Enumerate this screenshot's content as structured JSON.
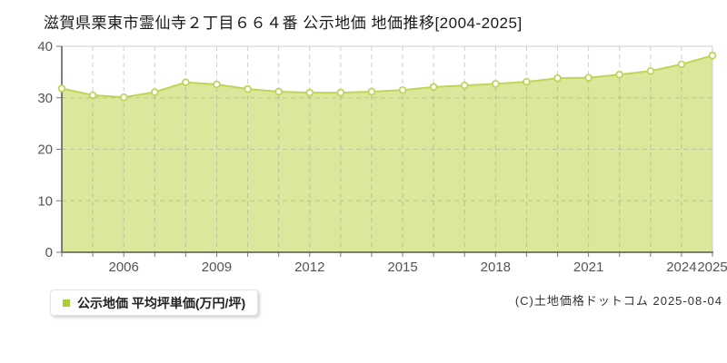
{
  "page": {
    "title": "滋賀県栗東市霊仙寺２丁目６６４番 公示地価 地価推移[2004-2025]",
    "copyright": "(C)土地価格ドットコム 2025-08-04"
  },
  "legend": {
    "label": "公示地価 平均坪単価(万円/坪)",
    "swatch_color": "#a9cf35"
  },
  "chart_data": {
    "type": "area",
    "title": "滋賀県栗東市霊仙寺２丁目６６４番 公示地価 地価推移[2004-2025]",
    "series_name": "公示地価 平均坪単価(万円/坪)",
    "x": [
      2004,
      2005,
      2006,
      2007,
      2008,
      2009,
      2010,
      2011,
      2012,
      2013,
      2014,
      2015,
      2016,
      2017,
      2018,
      2019,
      2020,
      2021,
      2022,
      2023,
      2024,
      2025
    ],
    "values": [
      31.8,
      30.5,
      30.1,
      31.1,
      33.0,
      32.6,
      31.7,
      31.2,
      31.0,
      31.0,
      31.2,
      31.5,
      32.1,
      32.4,
      32.7,
      33.1,
      33.8,
      33.9,
      34.5,
      35.2,
      36.5,
      38.2
    ],
    "xlabel": "",
    "ylabel": "",
    "ylim": [
      0,
      40
    ],
    "yticks": [
      0,
      10,
      20,
      30,
      40
    ],
    "xtick_labels": [
      2006,
      2009,
      2012,
      2015,
      2018,
      2021,
      2024,
      2025
    ],
    "grid": "dashed",
    "legend_position": "bottom-left",
    "colors": {
      "line": "#bcd657",
      "fill": "#dbe79b",
      "marker_fill": "#ffffff",
      "marker_stroke": "#bcd657",
      "axis": "#555555",
      "tick": "#777777",
      "grid": "#9e9e9e",
      "border": "#cccccc",
      "label": "#555555"
    }
  }
}
